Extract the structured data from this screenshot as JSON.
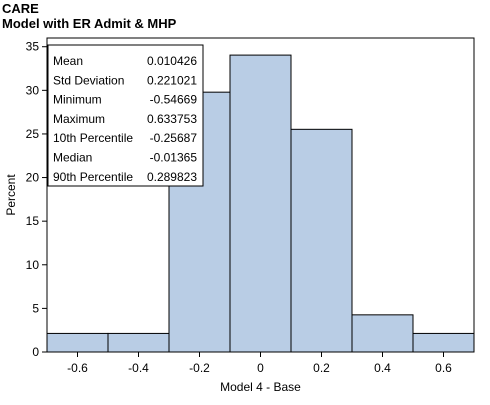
{
  "header": {
    "title": "CARE",
    "subtitle": "Model with ER Admit & MHP"
  },
  "chart_data": {
    "type": "bar",
    "title": "CARE",
    "subtitle": "Model with ER Admit & MHP",
    "xlabel": "Model 4 - Base",
    "ylabel": "Percent",
    "xlim": [
      -0.7,
      0.7
    ],
    "ylim": [
      0,
      36
    ],
    "x_ticks": [
      "-0.6",
      "-0.4",
      "-0.2",
      "0",
      "0.2",
      "0.4",
      "0.6"
    ],
    "x_tick_values": [
      -0.6,
      -0.4,
      -0.2,
      0,
      0.2,
      0.4,
      0.6
    ],
    "y_ticks": [
      "0",
      "5",
      "10",
      "15",
      "20",
      "25",
      "30",
      "35"
    ],
    "y_tick_values": [
      0,
      5,
      10,
      15,
      20,
      25,
      30,
      35
    ],
    "bins": [
      {
        "x0": -0.7,
        "x1": -0.5,
        "value": 2.13
      },
      {
        "x0": -0.5,
        "x1": -0.3,
        "value": 2.13
      },
      {
        "x0": -0.3,
        "x1": -0.1,
        "value": 29.79
      },
      {
        "x0": -0.1,
        "x1": 0.1,
        "value": 34.04
      },
      {
        "x0": 0.1,
        "x1": 0.3,
        "value": 25.53
      },
      {
        "x0": 0.3,
        "x1": 0.5,
        "value": 4.26
      },
      {
        "x0": 0.5,
        "x1": 0.7,
        "value": 2.13
      }
    ],
    "bar_color": "#b9cde5",
    "grid": false,
    "stats_placement": "top-left",
    "stats": [
      {
        "label": "Mean",
        "value": "0.010426"
      },
      {
        "label": "Std Deviation",
        "value": "0.221021"
      },
      {
        "label": "Minimum",
        "value": "-0.54669"
      },
      {
        "label": "Maximum",
        "value": "0.633753"
      },
      {
        "label": "10th Percentile",
        "value": "-0.25687"
      },
      {
        "label": "Median",
        "value": "-0.01365"
      },
      {
        "label": "90th Percentile",
        "value": "0.289823"
      }
    ]
  }
}
